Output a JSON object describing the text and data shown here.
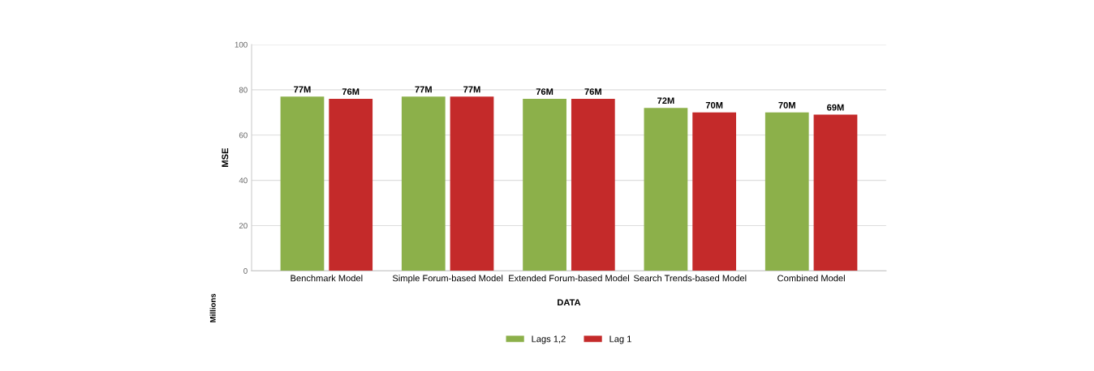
{
  "chart_data": {
    "type": "bar",
    "ylabel": "MSE",
    "xlabel": "DATA",
    "categories": [
      "Benchmark Model",
      "Simple Forum-based Model",
      "Extended Forum-based Model",
      "Search Trends-based Model",
      "Combined Model"
    ],
    "series": [
      {
        "name": "Lags 1,2",
        "color": "#8cb04a",
        "values": [
          77,
          77,
          76,
          72,
          70
        ],
        "value_labels": [
          "77M",
          "77M",
          "76M",
          "72M",
          "70M"
        ]
      },
      {
        "name": "Lag 1",
        "color": "#c42a2a",
        "values": [
          76,
          77,
          76,
          70,
          69
        ],
        "value_labels": [
          "76M",
          "77M",
          "76M",
          "70M",
          "69M"
        ]
      }
    ],
    "ylim": [
      0,
      100
    ],
    "yticks": [
      0,
      20,
      40,
      60,
      80,
      100
    ],
    "grid": "y",
    "legend": "bottom",
    "annotations": [
      "Millions"
    ]
  }
}
